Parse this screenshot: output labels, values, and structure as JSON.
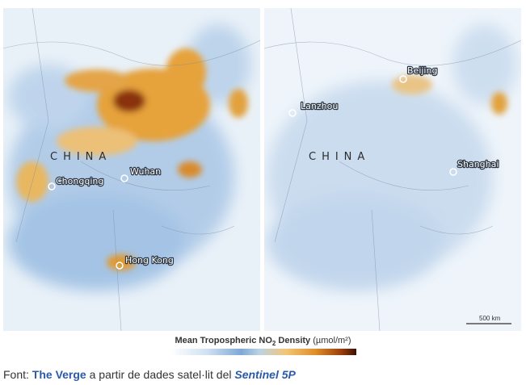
{
  "maps": [
    {
      "labels": [
        "CHINA",
        "Chongqing",
        "Wuhan",
        "Hong Kong"
      ]
    },
    {
      "labels": [
        "Lanzhou",
        "Beijing",
        "CHINA",
        "Shanghai"
      ],
      "scale_bar": "500 km"
    }
  ],
  "legend": {
    "title": "Mean Tropospheric NO",
    "subscript": "2",
    "title_end": "Density",
    "unit": "(µmol/m²)"
  },
  "caption": {
    "prefix": "Font:",
    "source": "The Verge",
    "middle": "a partir de dades satel·lit del",
    "satellite": "Sentinel 5P"
  }
}
